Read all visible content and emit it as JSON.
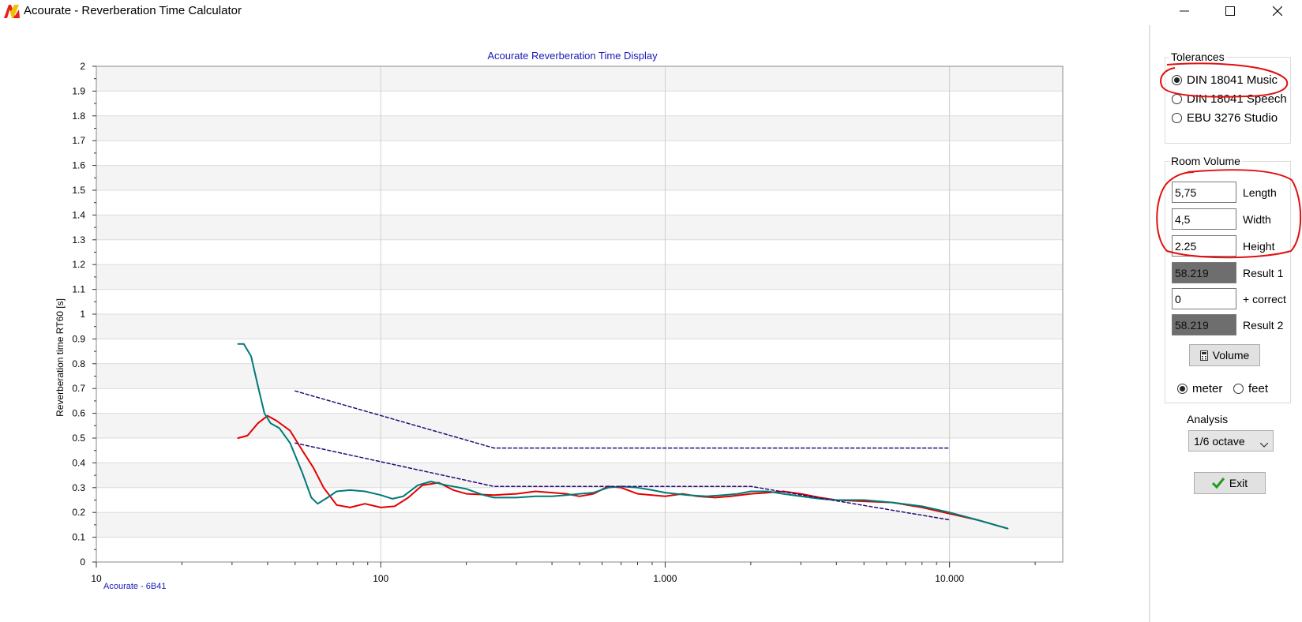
{
  "window": {
    "title": "Acourate - Reverberation Time Calculator",
    "icons": {
      "app": "acourate-logo-icon",
      "minimize": "minimize-icon",
      "maximize": "maximize-icon",
      "close": "close-icon"
    }
  },
  "chart": {
    "title": "Acourate Reverberation Time Display",
    "watermark": "Acourate - 6B41"
  },
  "chart_data": {
    "type": "line",
    "title": "Acourate Reverberation Time Display",
    "xlabel": "",
    "ylabel": "Reverberation time RT60 [s]",
    "xscale": "log",
    "xlim": [
      10,
      25000
    ],
    "ylim": [
      0,
      2
    ],
    "xticks": [
      10,
      100,
      1000,
      10000
    ],
    "xtick_labels": [
      "10",
      "100",
      "1.000",
      "10.000"
    ],
    "yticks": [
      0,
      0.1,
      0.2,
      0.3,
      0.4,
      0.5,
      0.6,
      0.7,
      0.8,
      0.9,
      1,
      1.1,
      1.2,
      1.3,
      1.4,
      1.5,
      1.6,
      1.7,
      1.8,
      1.9,
      2
    ],
    "ytick_labels": [
      "0",
      "0.1",
      "0.2",
      "0.3",
      "0.4",
      "0.5",
      "0.6",
      "0.7",
      "0.8",
      "0.9",
      "1",
      "1.1",
      "1.2",
      "1.3",
      "1.4",
      "1.5",
      "1.6",
      "1.7",
      "1.8",
      "1.9",
      "2"
    ],
    "grid": true,
    "series": [
      {
        "color": "#e30000",
        "style": "solid",
        "points": [
          [
            31.5,
            0.5
          ],
          [
            34,
            0.51
          ],
          [
            37,
            0.56
          ],
          [
            40,
            0.59
          ],
          [
            43,
            0.57
          ],
          [
            48,
            0.53
          ],
          [
            53,
            0.45
          ],
          [
            58,
            0.38
          ],
          [
            63,
            0.3
          ],
          [
            70,
            0.23
          ],
          [
            78,
            0.22
          ],
          [
            88,
            0.235
          ],
          [
            100,
            0.22
          ],
          [
            112,
            0.225
          ],
          [
            125,
            0.26
          ],
          [
            140,
            0.31
          ],
          [
            160,
            0.32
          ],
          [
            180,
            0.29
          ],
          [
            200,
            0.275
          ],
          [
            250,
            0.27
          ],
          [
            300,
            0.275
          ],
          [
            350,
            0.285
          ],
          [
            400,
            0.28
          ],
          [
            450,
            0.275
          ],
          [
            500,
            0.265
          ],
          [
            560,
            0.275
          ],
          [
            630,
            0.305
          ],
          [
            700,
            0.3
          ],
          [
            800,
            0.275
          ],
          [
            900,
            0.27
          ],
          [
            1000,
            0.265
          ],
          [
            1150,
            0.275
          ],
          [
            1300,
            0.265
          ],
          [
            1500,
            0.26
          ],
          [
            1700,
            0.265
          ],
          [
            2000,
            0.275
          ],
          [
            2300,
            0.28
          ],
          [
            2600,
            0.285
          ],
          [
            3000,
            0.275
          ],
          [
            3500,
            0.26
          ],
          [
            4000,
            0.25
          ],
          [
            5000,
            0.245
          ],
          [
            6300,
            0.24
          ],
          [
            8000,
            0.22
          ],
          [
            10000,
            0.195
          ],
          [
            12500,
            0.17
          ],
          [
            16000,
            0.135
          ]
        ]
      },
      {
        "color": "#007a78",
        "style": "solid",
        "points": [
          [
            31.5,
            0.88
          ],
          [
            33,
            0.88
          ],
          [
            35,
            0.83
          ],
          [
            37,
            0.71
          ],
          [
            39,
            0.6
          ],
          [
            41,
            0.56
          ],
          [
            44,
            0.54
          ],
          [
            48,
            0.48
          ],
          [
            53,
            0.36
          ],
          [
            57,
            0.26
          ],
          [
            60,
            0.235
          ],
          [
            65,
            0.26
          ],
          [
            70,
            0.285
          ],
          [
            78,
            0.29
          ],
          [
            88,
            0.285
          ],
          [
            100,
            0.27
          ],
          [
            110,
            0.255
          ],
          [
            120,
            0.265
          ],
          [
            135,
            0.31
          ],
          [
            150,
            0.325
          ],
          [
            170,
            0.31
          ],
          [
            200,
            0.295
          ],
          [
            230,
            0.27
          ],
          [
            250,
            0.26
          ],
          [
            300,
            0.26
          ],
          [
            350,
            0.265
          ],
          [
            400,
            0.265
          ],
          [
            450,
            0.27
          ],
          [
            500,
            0.275
          ],
          [
            560,
            0.28
          ],
          [
            630,
            0.3
          ],
          [
            700,
            0.305
          ],
          [
            800,
            0.3
          ],
          [
            900,
            0.29
          ],
          [
            1000,
            0.28
          ],
          [
            1200,
            0.27
          ],
          [
            1400,
            0.265
          ],
          [
            1600,
            0.27
          ],
          [
            1800,
            0.275
          ],
          [
            2000,
            0.285
          ],
          [
            2300,
            0.285
          ],
          [
            2600,
            0.275
          ],
          [
            3000,
            0.265
          ],
          [
            3500,
            0.255
          ],
          [
            4000,
            0.25
          ],
          [
            5000,
            0.25
          ],
          [
            6300,
            0.24
          ],
          [
            8000,
            0.225
          ],
          [
            10000,
            0.2
          ],
          [
            12500,
            0.17
          ],
          [
            16000,
            0.135
          ]
        ]
      },
      {
        "color": "#2a0a78",
        "style": "dashed",
        "points": [
          [
            50,
            0.69
          ],
          [
            250,
            0.46
          ],
          [
            10000,
            0.46
          ]
        ]
      },
      {
        "color": "#2a0a78",
        "style": "dashed",
        "points": [
          [
            50,
            0.48
          ],
          [
            250,
            0.305
          ],
          [
            2000,
            0.305
          ],
          [
            10000,
            0.17
          ]
        ]
      }
    ]
  },
  "tolerances": {
    "title": "Tolerances",
    "options": [
      "DIN 18041 Music",
      "DIN 18041 Speech",
      "EBU 3276 Studio"
    ],
    "selected": "DIN 18041 Music"
  },
  "room_volume": {
    "title": "Room Volume",
    "length": {
      "value": "5,75",
      "label": "Length"
    },
    "width": {
      "value": "4,5",
      "label": "Width"
    },
    "height": {
      "value": "2.25",
      "label": "Height"
    },
    "result1": {
      "value": "58.219",
      "label": "Result 1"
    },
    "correct": {
      "value": "0",
      "label": "+ correct"
    },
    "result2": {
      "value": "58.219",
      "label": "Result 2"
    },
    "volume_button": "Volume",
    "volume_icon": "calculator-icon",
    "units": [
      "meter",
      "feet"
    ],
    "unit_selected": "meter"
  },
  "analysis": {
    "label": "Analysis",
    "selected": "1/6 octave"
  },
  "exit_button": {
    "label": "Exit",
    "icon": "checkmark-icon"
  },
  "annotations": {
    "color": "#e01010"
  }
}
